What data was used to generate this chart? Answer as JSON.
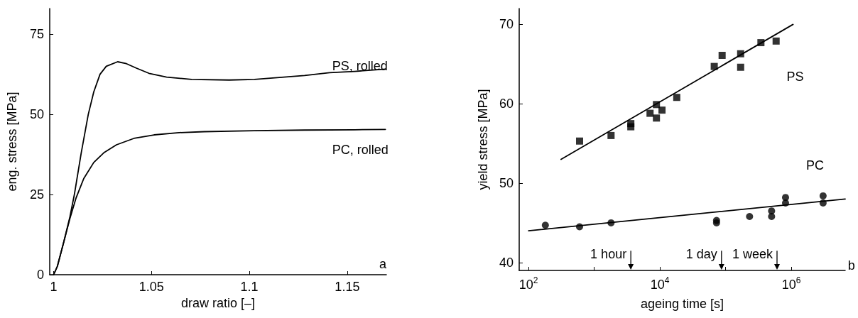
{
  "chart_data": [
    {
      "type": "line",
      "xlabel": "draw ratio [–]",
      "ylabel": "eng. stress [MPa]",
      "marker": "none",
      "line_style": "solid",
      "xlim": [
        0.998,
        1.17
      ],
      "ylim": [
        0,
        83
      ],
      "xticks": [
        1,
        1.05,
        1.1,
        1.15
      ],
      "yticks": [
        0,
        25,
        50,
        75
      ],
      "series": [
        {
          "color": "#000000",
          "x": [
            1.0,
            1.0019,
            1.0051,
            1.0083,
            1.0106,
            1.0141,
            1.0177,
            1.0205,
            1.0237,
            1.0269,
            1.0327,
            1.0372,
            1.0423,
            1.0487,
            1.0577,
            1.0705,
            1.0897,
            1.1026,
            1.1154,
            1.1282,
            1.141,
            1.1538,
            1.1695
          ],
          "values": [
            0,
            2.6,
            10,
            18,
            25,
            38,
            50,
            57,
            62.5,
            65,
            66.4,
            65.8,
            64.4,
            62.8,
            61.6,
            60.9,
            60.7,
            60.9,
            61.5,
            62.1,
            63.0,
            63.4,
            64.1
          ]
        },
        {
          "color": "#000000",
          "x": [
            1.0,
            1.0019,
            1.0051,
            1.0083,
            1.0115,
            1.0154,
            1.0205,
            1.0256,
            1.0321,
            1.041,
            1.0513,
            1.0641,
            1.0769,
            1.1026,
            1.1282,
            1.1538,
            1.1695
          ],
          "values": [
            0,
            2.6,
            10,
            17.5,
            24,
            30,
            35,
            38,
            40.5,
            42.5,
            43.6,
            44.3,
            44.6,
            44.9,
            45.1,
            45.2,
            45.3
          ]
        }
      ],
      "annotations": [
        "PS, rolled",
        "PC, rolled",
        "a"
      ]
    },
    {
      "type": "scatter",
      "xlabel": "ageing time [s]",
      "ylabel": "yield stress [MPa]",
      "log": "x",
      "xlim": [
        72,
        6600000
      ],
      "ylim": [
        39,
        72
      ],
      "xticks": [
        {
          "value": 100,
          "label": "10$^{2}$"
        },
        {
          "value": 1000,
          "label": null
        },
        {
          "value": 10000,
          "label": "10$^{4}$"
        },
        {
          "value": 100000,
          "label": null
        },
        {
          "value": 1000000,
          "label": "10$^{6}$"
        }
      ],
      "yticks": [
        40,
        50,
        60,
        70
      ],
      "series": [
        {
          "marker": "square",
          "color": "#000000",
          "x": [
            597,
            1800,
            3600,
            3600,
            7060,
            8830,
            8830,
            10740,
            18000,
            67000,
            88300,
            169000,
            169000,
            344000,
            586000
          ],
          "values": [
            55.3,
            56,
            57.5,
            57.1,
            58.8,
            59.9,
            58.2,
            59.2,
            60.8,
            64.7,
            66.1,
            66.3,
            64.6,
            67.7,
            67.9
          ]
        },
        {
          "marker": "circle",
          "color": "#000000",
          "x": [
            180,
            597,
            1800,
            72600,
            72600,
            231000,
            500000,
            500000,
            815000,
            815000,
            3040000,
            3040000
          ],
          "values": [
            44.7,
            44.5,
            45,
            45.3,
            45,
            45.8,
            46.5,
            45.8,
            48.2,
            47.5,
            48.4,
            47.5
          ]
        },
        {
          "type": "line",
          "marker": "none",
          "color": "#000000",
          "x": [
            312,
            1060000
          ],
          "values": [
            53,
            70
          ]
        },
        {
          "type": "line",
          "marker": "none",
          "color": "#000000",
          "x": [
            100,
            6600000
          ],
          "values": [
            44,
            48
          ]
        }
      ],
      "ref_lines": [
        {
          "axis": "x",
          "value": 3600,
          "label": "1 hour"
        },
        {
          "axis": "x",
          "value": 86400,
          "label": "1 day"
        },
        {
          "axis": "x",
          "value": 604800,
          "label": "1 week"
        }
      ],
      "annotations": [
        "PS",
        "PC",
        "b"
      ]
    }
  ]
}
